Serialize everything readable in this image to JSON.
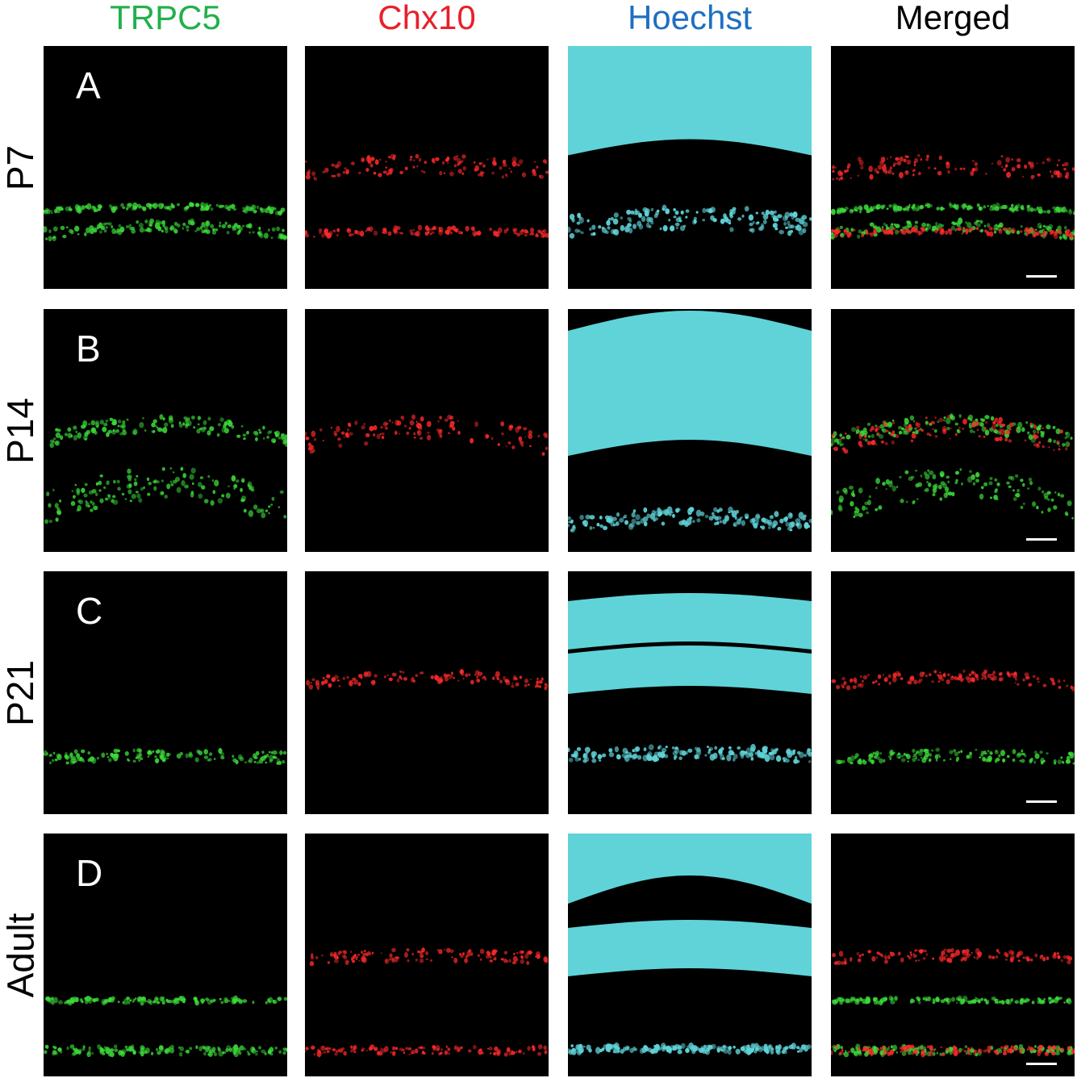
{
  "columns": [
    {
      "label": "TRPC5",
      "color": "#22b04b",
      "channel": "green"
    },
    {
      "label": "Chx10",
      "color": "#e8202a",
      "channel": "red"
    },
    {
      "label": "Hoechst",
      "color": "#1f6fc1",
      "channel": "cyan"
    },
    {
      "label": "Merged",
      "color": "#000000",
      "channel": "merged"
    }
  ],
  "rows": [
    {
      "label": "P7",
      "letter": "A"
    },
    {
      "label": "P14",
      "letter": "B"
    },
    {
      "label": "P21",
      "letter": "C"
    },
    {
      "label": "Adult",
      "letter": "D"
    }
  ],
  "colors": {
    "green_signal": "#3ddc3a",
    "red_signal": "#ff2a2a",
    "cyan_signal": "#5fd3d8"
  }
}
